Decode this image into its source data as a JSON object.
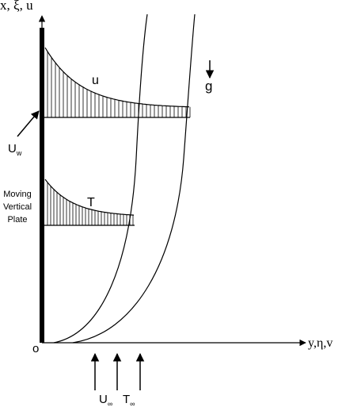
{
  "axes": {
    "vertical": "x, ξ, u",
    "horizontal": "y,η,v",
    "origin": "o"
  },
  "labels": {
    "velocity": "u",
    "temperature": "T",
    "gravity": "g",
    "wall_velocity": {
      "main": "U",
      "sub": "w"
    },
    "plate": [
      "Moving",
      "Vertical",
      "Plate"
    ],
    "free_stream_velocity": {
      "main": "U",
      "sub": "∞"
    },
    "free_stream_temperature": {
      "main": "T",
      "sub": "∞"
    }
  }
}
